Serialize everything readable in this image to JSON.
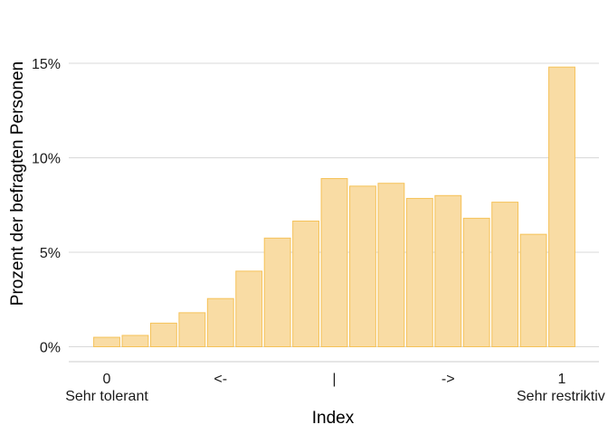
{
  "chart_data": {
    "type": "bar",
    "xlabel": "Index",
    "ylabel": "Prozent der befragten Personen",
    "ylim": [
      0,
      16.5
    ],
    "y_ticks": [
      {
        "value": 0,
        "label": "0%"
      },
      {
        "value": 5,
        "label": "5%"
      },
      {
        "value": 10,
        "label": "10%"
      },
      {
        "value": 15,
        "label": "15%"
      }
    ],
    "x_ticks": [
      {
        "position": 0,
        "label": "0",
        "sublabel": "Sehr tolerant"
      },
      {
        "position": 0.25,
        "label": "<-",
        "sublabel": ""
      },
      {
        "position": 0.5,
        "label": "|",
        "sublabel": ""
      },
      {
        "position": 0.75,
        "label": "->",
        "sublabel": ""
      },
      {
        "position": 1,
        "label": "1",
        "sublabel": "Sehr restriktiv"
      }
    ],
    "xlim": [
      -0.033,
      1.067
    ],
    "x": [
      0,
      0.0625,
      0.125,
      0.1875,
      0.25,
      0.3125,
      0.375,
      0.4375,
      0.5,
      0.5625,
      0.625,
      0.6875,
      0.75,
      0.8125,
      0.875,
      0.9375,
      1.0
    ],
    "values": [
      0.5,
      0.6,
      1.25,
      1.8,
      2.55,
      4.0,
      5.75,
      6.65,
      8.9,
      8.5,
      8.65,
      7.85,
      8.0,
      6.8,
      7.65,
      5.95,
      14.8
    ],
    "grid": true,
    "legend": "none",
    "colors": {
      "bar_fill": "#f9dca4",
      "bar_stroke": "#f5c258",
      "grid": "#d9d9d9",
      "axis": "#cccccc"
    }
  }
}
